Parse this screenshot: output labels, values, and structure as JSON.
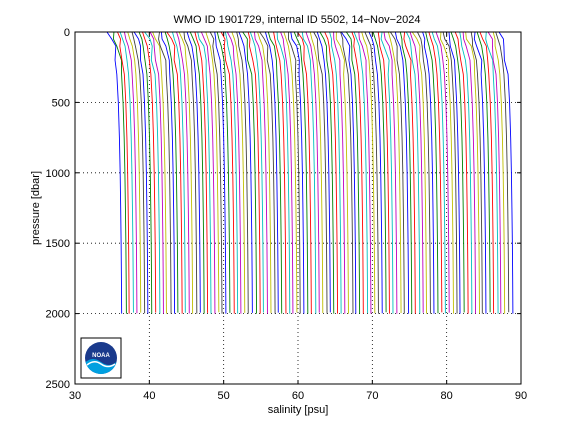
{
  "chart_data": {
    "type": "line",
    "title": "WMO ID 1901729, internal ID 5502, 14−Nov−2024",
    "xlabel": "salinity [psu]",
    "ylabel": "pressure [dbar]",
    "xlim": [
      30,
      90
    ],
    "ylim": [
      2500,
      0
    ],
    "y_reversed": true,
    "x_ticks": [
      30,
      40,
      50,
      60,
      70,
      80,
      90
    ],
    "y_ticks": [
      0,
      500,
      1000,
      1500,
      2000,
      2500
    ],
    "grid": "dotted",
    "profile_offset_psu": 0.5,
    "profile_base_start_psu": 34.6,
    "profile_count": 106,
    "profile_pressure_levels_dbar": [
      0,
      50,
      100,
      200,
      300,
      500,
      750,
      1000,
      1250,
      1500,
      1750,
      2000
    ],
    "profile_salinity_shape_psu": [
      0.0,
      0.3,
      0.6,
      0.9,
      1.1,
      1.3,
      1.45,
      1.55,
      1.62,
      1.68,
      1.72,
      1.75
    ],
    "profile_colors": [
      "#0000ff",
      "#008000",
      "#ff0000",
      "#00bfbf",
      "#bf00bf",
      "#bfbf00",
      "#404040"
    ],
    "logo": {
      "name": "noaa-logo",
      "text": "NOAA",
      "colors": {
        "outer": "#1a3a8c",
        "wave": "#00a0e0"
      }
    }
  }
}
